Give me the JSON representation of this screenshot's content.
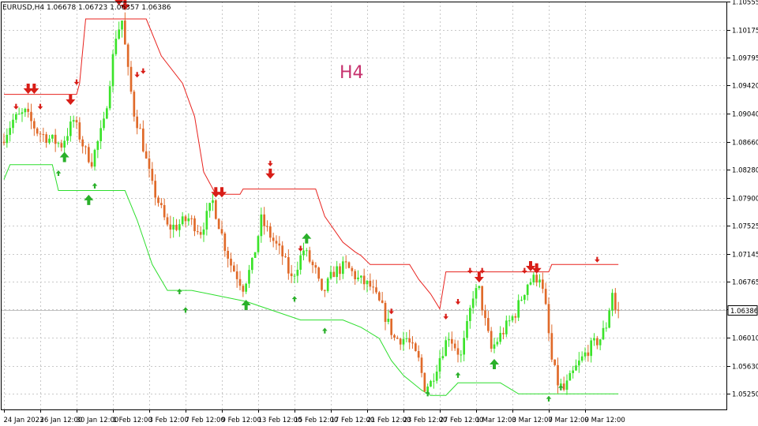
{
  "window": {
    "symbol_info": "EURUSD,H4  1.06678 1.06723 1.06357 1.06386",
    "timeframe_label": "H4"
  },
  "chart_data": {
    "type": "candlestick",
    "symbol": "EURUSD",
    "timeframe": "H4",
    "ohlc_header": {
      "open": 1.06678,
      "high": 1.06723,
      "low": 1.06357,
      "close": 1.06386
    },
    "current_price": 1.06386,
    "current_price_label": "1.06386",
    "ylim": [
      1.0504,
      1.10555
    ],
    "y_ticks": [
      1.10555,
      1.10175,
      1.09795,
      1.0942,
      1.0904,
      1.0866,
      1.0828,
      1.079,
      1.07525,
      1.07145,
      1.06765,
      1.0639,
      1.0601,
      1.0563,
      1.0525
    ],
    "y_tick_labels": [
      "1.10555",
      "1.10175",
      "1.09795",
      "1.09420",
      "1.09040",
      "1.08660",
      "1.08280",
      "1.07900",
      "1.07525",
      "1.07145",
      "1.06765",
      "",
      "1.06010",
      "1.05630",
      "1.05250"
    ],
    "bar_count": 240,
    "x_ticks": [
      {
        "bar": 0,
        "label": "24 Jan 2023"
      },
      {
        "bar": 12,
        "label": "26 Jan 12:00"
      },
      {
        "bar": 24,
        "label": "30 Jan 12:00"
      },
      {
        "bar": 36,
        "label": "1 Feb 12:00"
      },
      {
        "bar": 48,
        "label": "3 Feb 12:00"
      },
      {
        "bar": 60,
        "label": "7 Feb 12:00"
      },
      {
        "bar": 72,
        "label": "9 Feb 12:00"
      },
      {
        "bar": 84,
        "label": "13 Feb 12:00"
      },
      {
        "bar": 96,
        "label": "15 Feb 12:00"
      },
      {
        "bar": 108,
        "label": "17 Feb 12:00"
      },
      {
        "bar": 120,
        "label": "21 Feb 12:00"
      },
      {
        "bar": 132,
        "label": "23 Feb 12:00"
      },
      {
        "bar": 144,
        "label": "27 Feb 12:00"
      },
      {
        "bar": 156,
        "label": "1 Mar 12:00"
      },
      {
        "bar": 168,
        "label": "3 Mar 12:00"
      },
      {
        "bar": 180,
        "label": "7 Mar 12:00"
      },
      {
        "bar": 192,
        "label": "9 Mar 12:00"
      }
    ],
    "price_path": [
      [
        0,
        1.0866
      ],
      [
        4,
        1.0895
      ],
      [
        8,
        1.0905
      ],
      [
        12,
        1.088
      ],
      [
        16,
        1.087
      ],
      [
        20,
        1.0862
      ],
      [
        24,
        1.0895
      ],
      [
        28,
        1.0852
      ],
      [
        30,
        1.084
      ],
      [
        34,
        1.089
      ],
      [
        38,
        1.101
      ],
      [
        40,
        1.103
      ],
      [
        42,
        1.096
      ],
      [
        44,
        1.0905
      ],
      [
        46,
        1.088
      ],
      [
        48,
        1.084
      ],
      [
        50,
        1.0805
      ],
      [
        52,
        1.0785
      ],
      [
        55,
        1.075
      ],
      [
        58,
        1.0752
      ],
      [
        62,
        1.0762
      ],
      [
        66,
        1.0745
      ],
      [
        70,
        1.0785
      ],
      [
        74,
        1.0725
      ],
      [
        76,
        1.07
      ],
      [
        78,
        1.0685
      ],
      [
        80,
        1.067
      ],
      [
        83,
        1.07
      ],
      [
        86,
        1.076
      ],
      [
        90,
        1.0732
      ],
      [
        93,
        1.0712
      ],
      [
        96,
        1.068
      ],
      [
        100,
        1.072
      ],
      [
        104,
        1.069
      ],
      [
        106,
        1.0658
      ],
      [
        110,
        1.069
      ],
      [
        114,
        1.0698
      ],
      [
        118,
        1.068
      ],
      [
        122,
        1.067
      ],
      [
        126,
        1.064
      ],
      [
        130,
        1.06
      ],
      [
        134,
        1.06
      ],
      [
        138,
        1.057
      ],
      [
        140,
        1.0535
      ],
      [
        142,
        1.054
      ],
      [
        145,
        1.0575
      ],
      [
        148,
        1.0605
      ],
      [
        152,
        1.0575
      ],
      [
        154,
        1.0615
      ],
      [
        156,
        1.066
      ],
      [
        158,
        1.0665
      ],
      [
        160,
        1.0622
      ],
      [
        162,
        1.0585
      ],
      [
        166,
        1.061
      ],
      [
        170,
        1.0635
      ],
      [
        174,
        1.0675
      ],
      [
        178,
        1.0685
      ],
      [
        180,
        1.064
      ],
      [
        182,
        1.057
      ],
      [
        184,
        1.054
      ],
      [
        186,
        1.053
      ],
      [
        188,
        1.0545
      ],
      [
        190,
        1.056
      ],
      [
        194,
        1.0585
      ],
      [
        198,
        1.06
      ],
      [
        200,
        1.0618
      ],
      [
        202,
        1.0664
      ],
      [
        203,
        1.06386
      ]
    ],
    "upper_band": [
      [
        0,
        1.093
      ],
      [
        24,
        1.093
      ],
      [
        25,
        1.0945
      ],
      [
        27,
        1.1032
      ],
      [
        47,
        1.1032
      ],
      [
        52,
        1.0982
      ],
      [
        59,
        1.0945
      ],
      [
        63,
        1.09
      ],
      [
        66,
        1.0825
      ],
      [
        70,
        1.0795
      ],
      [
        78,
        1.0795
      ],
      [
        79,
        1.0802
      ],
      [
        103,
        1.0802
      ],
      [
        106,
        1.0765
      ],
      [
        112,
        1.073
      ],
      [
        116,
        1.0717
      ],
      [
        118,
        1.0712
      ],
      [
        121,
        1.07
      ],
      [
        134,
        1.07
      ],
      [
        137,
        1.068
      ],
      [
        141,
        1.066
      ],
      [
        144,
        1.064
      ],
      [
        146,
        1.069
      ],
      [
        180,
        1.069
      ],
      [
        181,
        1.07
      ],
      [
        203,
        1.07
      ]
    ],
    "lower_band": [
      [
        0,
        1.0815
      ],
      [
        2,
        1.0835
      ],
      [
        16,
        1.0835
      ],
      [
        18,
        1.08
      ],
      [
        40,
        1.08
      ],
      [
        44,
        1.076
      ],
      [
        49,
        1.07
      ],
      [
        54,
        1.0665
      ],
      [
        62,
        1.0665
      ],
      [
        68,
        1.066
      ],
      [
        80,
        1.065
      ],
      [
        98,
        1.0625
      ],
      [
        112,
        1.0625
      ],
      [
        118,
        1.0615
      ],
      [
        124,
        1.06
      ],
      [
        128,
        1.057
      ],
      [
        132,
        1.055
      ],
      [
        138,
        1.053
      ],
      [
        141,
        1.0523
      ],
      [
        146,
        1.0523
      ],
      [
        150,
        1.054
      ],
      [
        164,
        1.054
      ],
      [
        168,
        1.053
      ],
      [
        170,
        1.0525
      ],
      [
        203,
        1.0525
      ]
    ],
    "signal_arrows": [
      {
        "bar": 8,
        "dir": "down",
        "size": "big",
        "price": 1.0935
      },
      {
        "bar": 10,
        "dir": "down",
        "size": "big",
        "price": 1.0935
      },
      {
        "bar": 4,
        "dir": "down",
        "size": "small",
        "price": 1.0912
      },
      {
        "bar": 12,
        "dir": "down",
        "size": "small",
        "price": 1.0912
      },
      {
        "bar": 22,
        "dir": "down",
        "size": "big",
        "price": 1.092
      },
      {
        "bar": 24,
        "dir": "down",
        "size": "small",
        "price": 1.0945
      },
      {
        "bar": 38,
        "dir": "down",
        "size": "big",
        "price": 1.1055
      },
      {
        "bar": 40,
        "dir": "down",
        "size": "big",
        "price": 1.1048
      },
      {
        "bar": 44,
        "dir": "down",
        "size": "small",
        "price": 1.0955
      },
      {
        "bar": 46,
        "dir": "down",
        "size": "small",
        "price": 1.096
      },
      {
        "bar": 70,
        "dir": "down",
        "size": "big",
        "price": 1.0795
      },
      {
        "bar": 72,
        "dir": "down",
        "size": "big",
        "price": 1.0795
      },
      {
        "bar": 88,
        "dir": "down",
        "size": "small",
        "price": 1.0835
      },
      {
        "bar": 88,
        "dir": "down",
        "size": "big",
        "price": 1.082
      },
      {
        "bar": 98,
        "dir": "down",
        "size": "small",
        "price": 1.072
      },
      {
        "bar": 128,
        "dir": "down",
        "size": "small",
        "price": 1.0635
      },
      {
        "bar": 146,
        "dir": "down",
        "size": "small",
        "price": 1.0628
      },
      {
        "bar": 150,
        "dir": "down",
        "size": "small",
        "price": 1.0648
      },
      {
        "bar": 154,
        "dir": "down",
        "size": "small",
        "price": 1.069
      },
      {
        "bar": 157,
        "dir": "down",
        "size": "big",
        "price": 1.068
      },
      {
        "bar": 158,
        "dir": "down",
        "size": "small",
        "price": 1.069
      },
      {
        "bar": 172,
        "dir": "down",
        "size": "small",
        "price": 1.069
      },
      {
        "bar": 174,
        "dir": "down",
        "size": "big",
        "price": 1.0695
      },
      {
        "bar": 176,
        "dir": "down",
        "size": "big",
        "price": 1.0692
      },
      {
        "bar": 196,
        "dir": "down",
        "size": "small",
        "price": 1.0705
      },
      {
        "bar": 100,
        "dir": "up",
        "size": "big",
        "price": 1.0738
      },
      {
        "bar": 20,
        "dir": "up",
        "size": "big",
        "price": 1.0848
      },
      {
        "bar": 18,
        "dir": "up",
        "size": "small",
        "price": 1.0825
      },
      {
        "bar": 30,
        "dir": "up",
        "size": "small",
        "price": 1.0808
      },
      {
        "bar": 28,
        "dir": "up",
        "size": "big",
        "price": 1.079
      },
      {
        "bar": 58,
        "dir": "up",
        "size": "small",
        "price": 1.0665
      },
      {
        "bar": 60,
        "dir": "up",
        "size": "small",
        "price": 1.064
      },
      {
        "bar": 80,
        "dir": "up",
        "size": "big",
        "price": 1.0648
      },
      {
        "bar": 96,
        "dir": "up",
        "size": "small",
        "price": 1.0655
      },
      {
        "bar": 106,
        "dir": "up",
        "size": "small",
        "price": 1.0612
      },
      {
        "bar": 140,
        "dir": "up",
        "size": "small",
        "price": 1.0527
      },
      {
        "bar": 150,
        "dir": "up",
        "size": "small",
        "price": 1.0552
      },
      {
        "bar": 162,
        "dir": "up",
        "size": "big",
        "price": 1.0568
      },
      {
        "bar": 180,
        "dir": "up",
        "size": "small",
        "price": 1.052
      },
      {
        "bar": 184,
        "dir": "up",
        "size": "small",
        "price": 1.0535
      }
    ],
    "colors": {
      "bull_candle": "#3be32a",
      "bear_candle": "#e06a2a",
      "upper_band": "#e8231f",
      "lower_band": "#2dde2d",
      "grid": "#c8c8c8",
      "axis_text": "#000000",
      "timeframe_label": "#c7326e",
      "price_line": "#c0c0c0",
      "arrow_up": "#2ab02a",
      "arrow_down": "#d81d17",
      "arrow_up_outline": "#1f5fbf",
      "arrow_down_outline": "#e23434",
      "arrow_up_light": "#7ec9ee",
      "arrow_down_light": "#f4a0b4"
    }
  }
}
